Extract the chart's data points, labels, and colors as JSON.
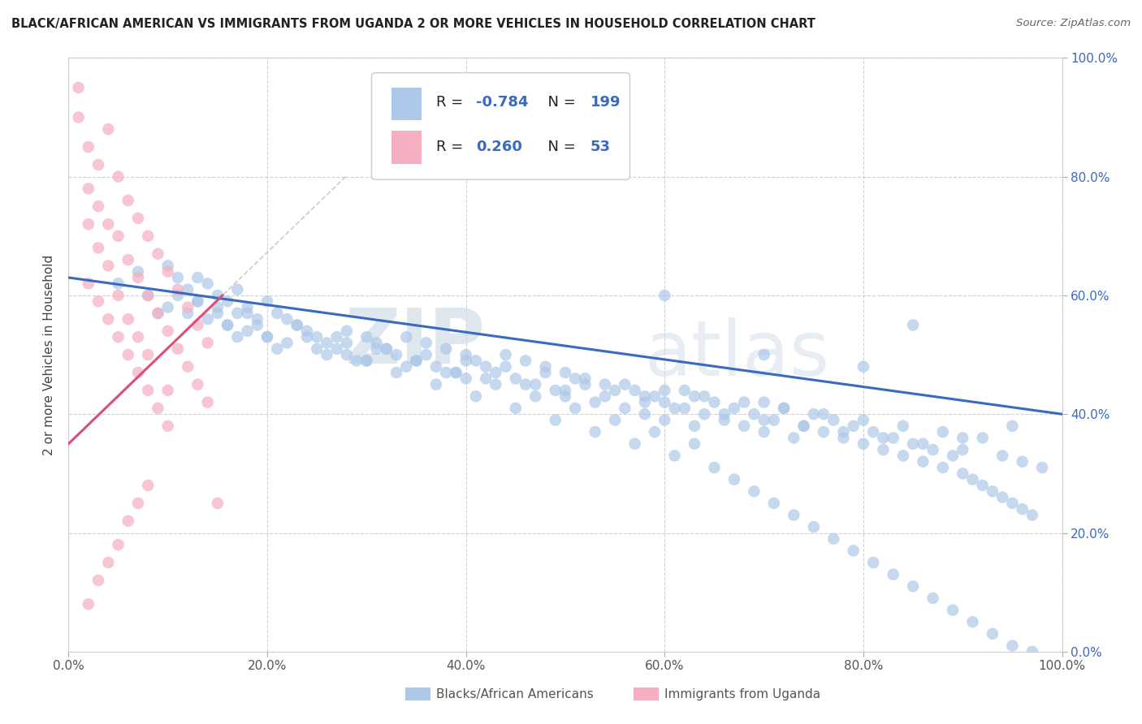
{
  "title": "BLACK/AFRICAN AMERICAN VS IMMIGRANTS FROM UGANDA 2 OR MORE VEHICLES IN HOUSEHOLD CORRELATION CHART",
  "source": "Source: ZipAtlas.com",
  "ylabel": "2 or more Vehicles in Household",
  "xlim": [
    0,
    1
  ],
  "ylim": [
    0,
    1
  ],
  "blue_R": -0.784,
  "blue_N": 199,
  "pink_R": 0.26,
  "pink_N": 53,
  "blue_color": "#adc8e8",
  "pink_color": "#f4afc0",
  "blue_line_color": "#3a6abf",
  "pink_line_color": "#d94f7a",
  "watermark_zip": "ZIP",
  "watermark_atlas": "atlas",
  "legend_label_blue": "Blacks/African Americans",
  "legend_label_pink": "Immigrants from Uganda",
  "blue_scatter_x": [
    0.05,
    0.07,
    0.08,
    0.09,
    0.1,
    0.1,
    0.11,
    0.11,
    0.12,
    0.12,
    0.13,
    0.13,
    0.14,
    0.14,
    0.15,
    0.15,
    0.16,
    0.16,
    0.17,
    0.17,
    0.18,
    0.18,
    0.19,
    0.2,
    0.2,
    0.21,
    0.22,
    0.22,
    0.23,
    0.24,
    0.25,
    0.26,
    0.27,
    0.28,
    0.28,
    0.3,
    0.3,
    0.31,
    0.32,
    0.33,
    0.34,
    0.35,
    0.36,
    0.37,
    0.38,
    0.39,
    0.4,
    0.4,
    0.41,
    0.42,
    0.43,
    0.44,
    0.45,
    0.46,
    0.47,
    0.48,
    0.49,
    0.5,
    0.5,
    0.51,
    0.52,
    0.53,
    0.54,
    0.55,
    0.56,
    0.57,
    0.58,
    0.58,
    0.59,
    0.6,
    0.6,
    0.61,
    0.62,
    0.63,
    0.63,
    0.64,
    0.65,
    0.66,
    0.67,
    0.68,
    0.69,
    0.7,
    0.7,
    0.71,
    0.72,
    0.73,
    0.74,
    0.75,
    0.76,
    0.77,
    0.78,
    0.79,
    0.8,
    0.81,
    0.82,
    0.83,
    0.84,
    0.85,
    0.86,
    0.87,
    0.88,
    0.89,
    0.9,
    0.91,
    0.92,
    0.93,
    0.94,
    0.95,
    0.96,
    0.97,
    0.15,
    0.17,
    0.19,
    0.21,
    0.24,
    0.26,
    0.28,
    0.3,
    0.32,
    0.34,
    0.36,
    0.38,
    0.4,
    0.42,
    0.44,
    0.46,
    0.48,
    0.5,
    0.52,
    0.54,
    0.56,
    0.58,
    0.6,
    0.62,
    0.64,
    0.66,
    0.68,
    0.7,
    0.72,
    0.74,
    0.76,
    0.78,
    0.8,
    0.82,
    0.84,
    0.86,
    0.88,
    0.9,
    0.92,
    0.94,
    0.96,
    0.98,
    0.13,
    0.16,
    0.18,
    0.2,
    0.23,
    0.25,
    0.27,
    0.29,
    0.31,
    0.33,
    0.35,
    0.37,
    0.39,
    0.41,
    0.43,
    0.45,
    0.47,
    0.49,
    0.51,
    0.53,
    0.55,
    0.57,
    0.59,
    0.61,
    0.63,
    0.65,
    0.67,
    0.69,
    0.71,
    0.73,
    0.75,
    0.77,
    0.79,
    0.81,
    0.83,
    0.85,
    0.87,
    0.89,
    0.91,
    0.93,
    0.95,
    0.97,
    0.6,
    0.7,
    0.8,
    0.9,
    0.85,
    0.95
  ],
  "blue_scatter_y": [
    0.62,
    0.64,
    0.6,
    0.57,
    0.65,
    0.58,
    0.63,
    0.6,
    0.61,
    0.57,
    0.59,
    0.63,
    0.62,
    0.56,
    0.6,
    0.58,
    0.59,
    0.55,
    0.57,
    0.61,
    0.58,
    0.54,
    0.56,
    0.59,
    0.53,
    0.57,
    0.56,
    0.52,
    0.55,
    0.54,
    0.53,
    0.52,
    0.51,
    0.54,
    0.5,
    0.53,
    0.49,
    0.52,
    0.51,
    0.5,
    0.53,
    0.49,
    0.52,
    0.48,
    0.51,
    0.47,
    0.5,
    0.46,
    0.49,
    0.48,
    0.47,
    0.5,
    0.46,
    0.49,
    0.45,
    0.48,
    0.44,
    0.47,
    0.43,
    0.46,
    0.45,
    0.42,
    0.45,
    0.44,
    0.41,
    0.44,
    0.43,
    0.4,
    0.43,
    0.42,
    0.39,
    0.41,
    0.44,
    0.38,
    0.43,
    0.4,
    0.42,
    0.39,
    0.41,
    0.38,
    0.4,
    0.42,
    0.37,
    0.39,
    0.41,
    0.36,
    0.38,
    0.4,
    0.37,
    0.39,
    0.36,
    0.38,
    0.35,
    0.37,
    0.34,
    0.36,
    0.33,
    0.35,
    0.32,
    0.34,
    0.31,
    0.33,
    0.3,
    0.29,
    0.28,
    0.27,
    0.26,
    0.25,
    0.24,
    0.23,
    0.57,
    0.53,
    0.55,
    0.51,
    0.53,
    0.5,
    0.52,
    0.49,
    0.51,
    0.48,
    0.5,
    0.47,
    0.49,
    0.46,
    0.48,
    0.45,
    0.47,
    0.44,
    0.46,
    0.43,
    0.45,
    0.42,
    0.44,
    0.41,
    0.43,
    0.4,
    0.42,
    0.39,
    0.41,
    0.38,
    0.4,
    0.37,
    0.39,
    0.36,
    0.38,
    0.35,
    0.37,
    0.34,
    0.36,
    0.33,
    0.32,
    0.31,
    0.59,
    0.55,
    0.57,
    0.53,
    0.55,
    0.51,
    0.53,
    0.49,
    0.51,
    0.47,
    0.49,
    0.45,
    0.47,
    0.43,
    0.45,
    0.41,
    0.43,
    0.39,
    0.41,
    0.37,
    0.39,
    0.35,
    0.37,
    0.33,
    0.35,
    0.31,
    0.29,
    0.27,
    0.25,
    0.23,
    0.21,
    0.19,
    0.17,
    0.15,
    0.13,
    0.11,
    0.09,
    0.07,
    0.05,
    0.03,
    0.01,
    0.0,
    0.6,
    0.5,
    0.48,
    0.36,
    0.55,
    0.38
  ],
  "pink_scatter_x": [
    0.01,
    0.02,
    0.02,
    0.02,
    0.03,
    0.03,
    0.03,
    0.04,
    0.04,
    0.04,
    0.05,
    0.05,
    0.05,
    0.06,
    0.06,
    0.06,
    0.07,
    0.07,
    0.07,
    0.08,
    0.08,
    0.08,
    0.09,
    0.09,
    0.1,
    0.1,
    0.1,
    0.11,
    0.11,
    0.12,
    0.12,
    0.13,
    0.13,
    0.14,
    0.14,
    0.02,
    0.03,
    0.04,
    0.05,
    0.06,
    0.07,
    0.08,
    0.09,
    0.1,
    0.01,
    0.02,
    0.03,
    0.04,
    0.05,
    0.06,
    0.07,
    0.08,
    0.15
  ],
  "pink_scatter_y": [
    0.9,
    0.85,
    0.78,
    0.72,
    0.82,
    0.75,
    0.68,
    0.88,
    0.72,
    0.65,
    0.8,
    0.7,
    0.6,
    0.76,
    0.66,
    0.56,
    0.73,
    0.63,
    0.53,
    0.7,
    0.6,
    0.5,
    0.67,
    0.57,
    0.64,
    0.54,
    0.44,
    0.61,
    0.51,
    0.58,
    0.48,
    0.55,
    0.45,
    0.52,
    0.42,
    0.62,
    0.59,
    0.56,
    0.53,
    0.5,
    0.47,
    0.44,
    0.41,
    0.38,
    0.95,
    0.08,
    0.12,
    0.15,
    0.18,
    0.22,
    0.25,
    0.28,
    0.25
  ]
}
